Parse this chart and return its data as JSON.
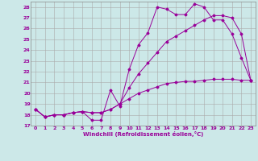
{
  "title": "",
  "xlabel": "Windchill (Refroidissement éolien,°C)",
  "bg_color": "#cce8e8",
  "line_color": "#990099",
  "grid_color": "#aaaaaa",
  "grid_color2": "#bbbbbb",
  "xlim": [
    -0.5,
    23.5
  ],
  "ylim": [
    17,
    28.5
  ],
  "yticks": [
    17,
    18,
    19,
    20,
    21,
    22,
    23,
    24,
    25,
    26,
    27,
    28
  ],
  "xticks": [
    0,
    1,
    2,
    3,
    4,
    5,
    6,
    7,
    8,
    9,
    10,
    11,
    12,
    13,
    14,
    15,
    16,
    17,
    18,
    19,
    20,
    21,
    22,
    23
  ],
  "line1_x": [
    0,
    1,
    2,
    3,
    4,
    5,
    6,
    7,
    8,
    9,
    10,
    11,
    12,
    13,
    14,
    15,
    16,
    17,
    18,
    19,
    20,
    21,
    22,
    23
  ],
  "line1_y": [
    18.5,
    17.8,
    18.0,
    18.0,
    18.2,
    18.3,
    17.5,
    17.5,
    20.3,
    18.8,
    22.2,
    24.5,
    25.6,
    28.0,
    27.8,
    27.3,
    27.3,
    28.3,
    28.0,
    26.8,
    26.8,
    25.5,
    23.3,
    21.2
  ],
  "line2_x": [
    0,
    1,
    2,
    3,
    4,
    5,
    6,
    7,
    8,
    9,
    10,
    11,
    12,
    13,
    14,
    15,
    16,
    17,
    18,
    19,
    20,
    21,
    22,
    23
  ],
  "line2_y": [
    18.5,
    17.8,
    18.0,
    18.0,
    18.2,
    18.3,
    18.2,
    18.2,
    18.5,
    19.0,
    20.5,
    21.8,
    22.8,
    23.8,
    24.8,
    25.3,
    25.8,
    26.3,
    26.8,
    27.2,
    27.2,
    27.0,
    25.5,
    21.2
  ],
  "line3_x": [
    0,
    1,
    2,
    3,
    4,
    5,
    6,
    7,
    8,
    9,
    10,
    11,
    12,
    13,
    14,
    15,
    16,
    17,
    18,
    19,
    20,
    21,
    22,
    23
  ],
  "line3_y": [
    18.5,
    17.8,
    18.0,
    18.0,
    18.2,
    18.3,
    18.2,
    18.2,
    18.5,
    19.0,
    19.5,
    20.0,
    20.3,
    20.6,
    20.9,
    21.0,
    21.1,
    21.1,
    21.2,
    21.3,
    21.3,
    21.3,
    21.2,
    21.2
  ]
}
